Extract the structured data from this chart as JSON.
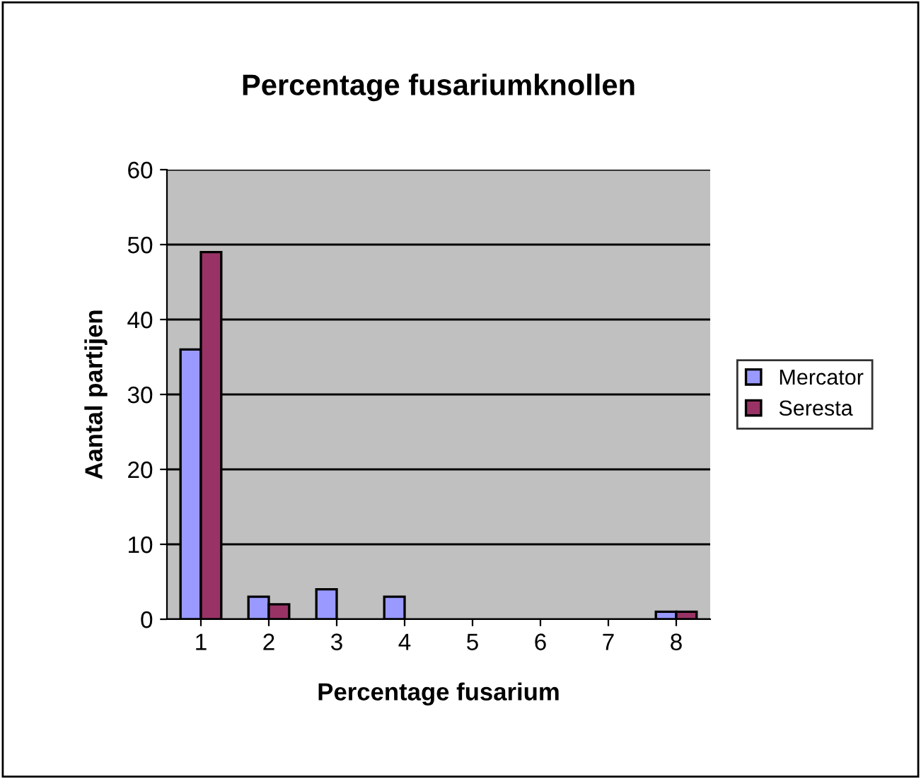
{
  "chart_data": {
    "type": "bar",
    "title": "Percentage fusariumknollen",
    "xlabel": "Percentage fusarium",
    "ylabel": "Aantal partijen",
    "categories": [
      "1",
      "2",
      "3",
      "4",
      "5",
      "6",
      "7",
      "8"
    ],
    "series": [
      {
        "name": "Mercator",
        "color": "#9999ff",
        "values": [
          36,
          3,
          4,
          3,
          0,
          0,
          0,
          1
        ]
      },
      {
        "name": "Seresta",
        "color": "#993366",
        "values": [
          49,
          2,
          0,
          0,
          0,
          0,
          0,
          1
        ]
      }
    ],
    "ylim": [
      0,
      60
    ],
    "yticks": [
      0,
      10,
      20,
      30,
      40,
      50,
      60
    ],
    "grid": "y",
    "legend": "right"
  }
}
